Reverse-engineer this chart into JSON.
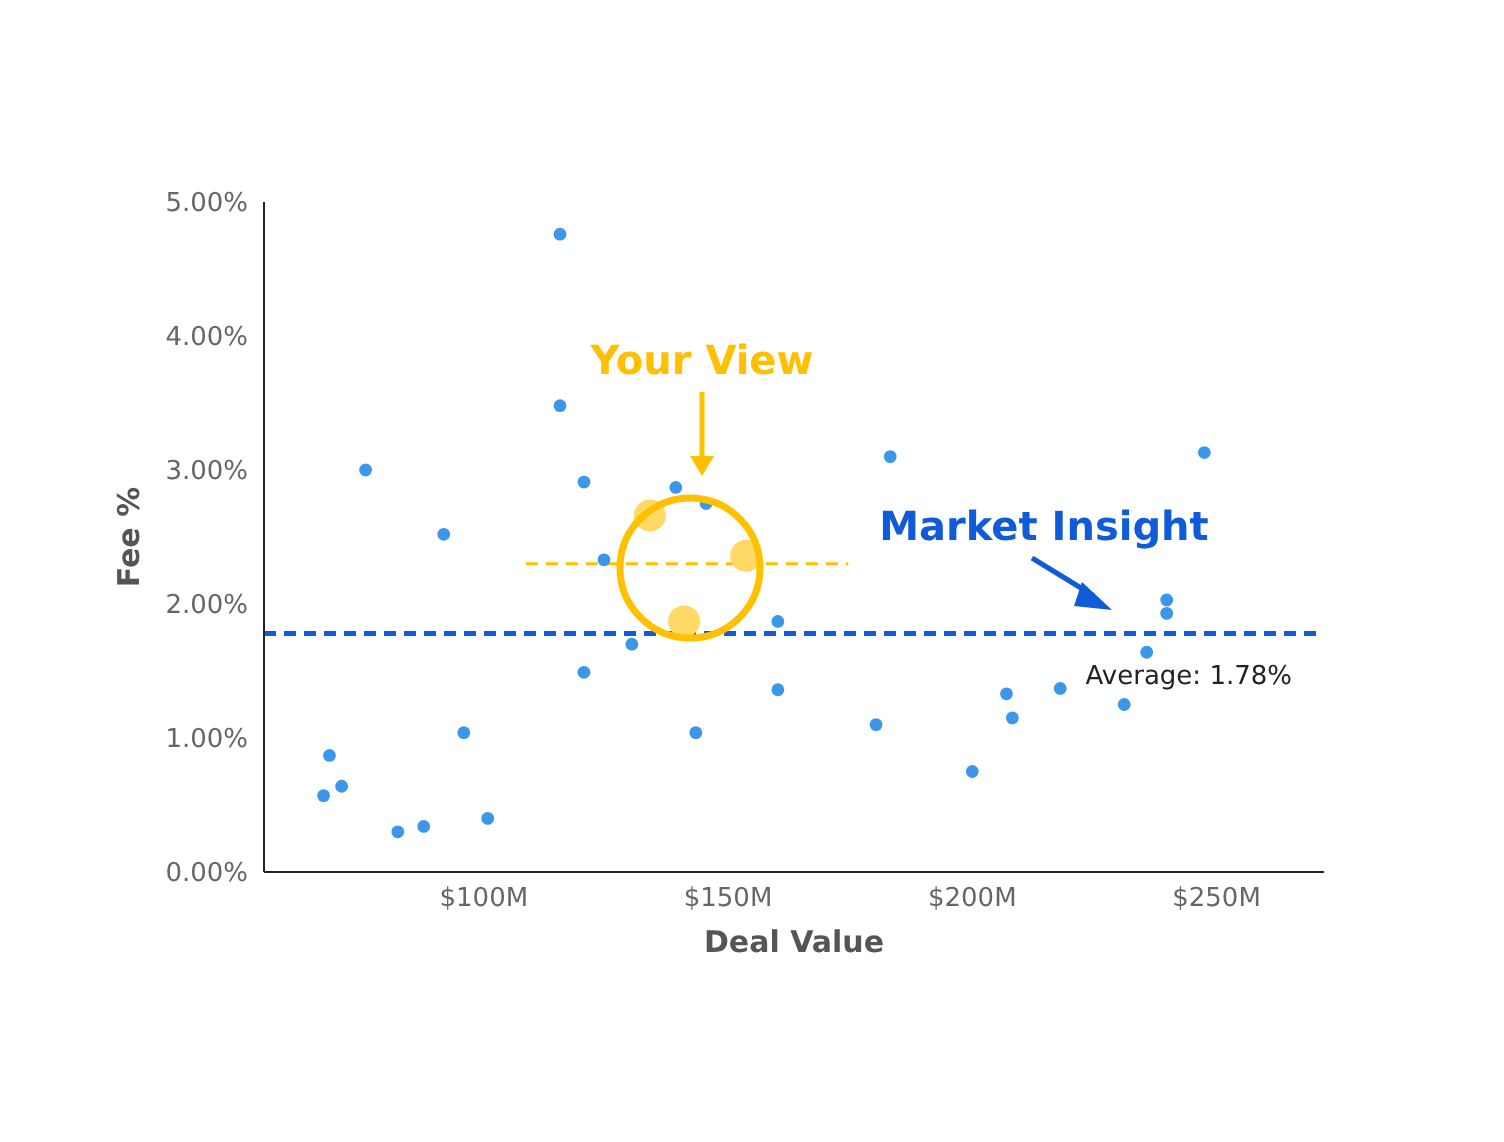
{
  "chart_data": {
    "type": "scatter",
    "xlabel": "Deal Value",
    "ylabel": "Fee %",
    "xlim": [
      55,
      272
    ],
    "ylim": [
      0,
      5
    ],
    "xticks": [
      {
        "value": 100,
        "label": "$100M"
      },
      {
        "value": 150,
        "label": "$150M"
      },
      {
        "value": 200,
        "label": "$200M"
      },
      {
        "value": 250,
        "label": "$250M"
      }
    ],
    "yticks": [
      {
        "value": 0,
        "label": "0.00%"
      },
      {
        "value": 1,
        "label": "1.00%"
      },
      {
        "value": 2,
        "label": "2.00%"
      },
      {
        "value": 3,
        "label": "3.00%"
      },
      {
        "value": 4,
        "label": "4.00%"
      },
      {
        "value": 5,
        "label": "5.00%"
      }
    ],
    "grid": false,
    "legend": false,
    "marker": "circle",
    "series": [
      {
        "color": "#3d97e8",
        "x": [
          67.2,
          68.4,
          70.9,
          75.8,
          82.4,
          87.7,
          91.8,
          95.9,
          100.8,
          115.6,
          115.6,
          120.5,
          120.5,
          124.6,
          130.3,
          139.3,
          145.5,
          143.4,
          160.2,
          160.2,
          180.3,
          183.2,
          200,
          207,
          208.2,
          218,
          231.1,
          235.7,
          239.8,
          239.8,
          247.5
        ],
        "values": [
          0.57,
          0.87,
          0.64,
          3.0,
          0.3,
          0.34,
          2.52,
          1.04,
          0.4,
          4.76,
          3.48,
          2.91,
          1.49,
          2.33,
          1.7,
          2.87,
          2.75,
          1.04,
          1.87,
          1.36,
          1.1,
          3.1,
          0.75,
          1.33,
          1.15,
          1.37,
          1.25,
          1.64,
          2.03,
          1.93,
          3.13
        ]
      },
      {
        "color": "#ffd966",
        "x": [
          134,
          153.7,
          141
        ],
        "values": [
          2.66,
          2.36,
          1.87
        ]
      },
      {
        "type": "line",
        "color": "#ffc000",
        "line_style": "dashed",
        "marker": "none",
        "x": [
          108.6,
          174.6
        ],
        "values": [
          2.3,
          2.3
        ]
      }
    ],
    "ref_lines": [
      {
        "axis": "y",
        "value": 1.78,
        "label": "Average: 1.78%",
        "color": "#0f5bd8",
        "line_style": "dashed"
      }
    ],
    "annotations": [
      "Your View",
      "Market Insight"
    ]
  }
}
